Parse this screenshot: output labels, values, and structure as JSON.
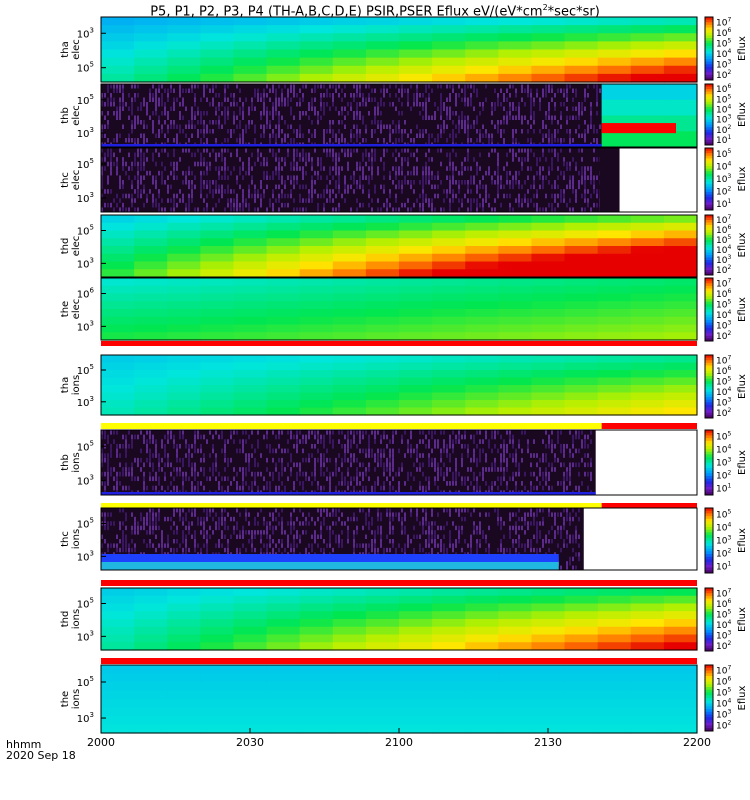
{
  "title": "P5, P1, P2, P3, P4 (TH-A,B,C,D,E) PSIR,PSER Eflux eV/(eV*cm2*sec*sr)",
  "chart_data": {
    "type": "heatmap",
    "x_axis": {
      "range": [
        "2000",
        "2200"
      ],
      "ticks": [
        "2000",
        "2030",
        "2100",
        "2130",
        "2200"
      ],
      "label_line1": "hhmm",
      "label_line2": "2020 Sep 18"
    },
    "colorbar_label": "Eflux",
    "panels": [
      {
        "id": "tha_elec",
        "ylabel": [
          "tha",
          "elec"
        ],
        "yticks": [
          "10^3",
          "10^5"
        ],
        "cbar": [
          "10^2",
          "10^3",
          "10^4",
          "10^5",
          "10^6",
          "10^7"
        ],
        "pattern": "smooth_green_to_red",
        "bottom_band": "none",
        "fill_end": 1.0
      },
      {
        "id": "thb_elec",
        "ylabel": [
          "thb",
          "elec"
        ],
        "yticks": [
          "10^5",
          "10^3"
        ],
        "cbar": [
          "10^1",
          "10^2",
          "10^3",
          "10^4",
          "10^5",
          "10^6"
        ],
        "pattern": "noise_then_data",
        "bottom_band": "none",
        "fill_end": 0.85
      },
      {
        "id": "thc_elec",
        "ylabel": [
          "thc",
          "elec"
        ],
        "yticks": [
          "10^5",
          "10^3"
        ],
        "cbar": [
          "10^1",
          "10^2",
          "10^3",
          "10^4",
          "10^5"
        ],
        "pattern": "noise",
        "bottom_band": "none",
        "fill_end": 0.87
      },
      {
        "id": "thd_elec",
        "ylabel": [
          "thd",
          "elec"
        ],
        "yticks": [
          "10^5",
          "10^3"
        ],
        "cbar": [
          "10^2",
          "10^3",
          "10^4",
          "10^5",
          "10^6",
          "10^7"
        ],
        "pattern": "smooth_to_red",
        "bottom_band": "none",
        "fill_end": 1.0
      },
      {
        "id": "the_elec",
        "ylabel": [
          "the",
          "elec"
        ],
        "yticks": [
          "10^6",
          "10^3"
        ],
        "cbar": [
          "10^2",
          "10^3",
          "10^4",
          "10^5",
          "10^6",
          "10^7"
        ],
        "pattern": "smooth_green",
        "bottom_band": "red",
        "fill_end": 1.0
      },
      {
        "id": "tha_ions",
        "ylabel": [
          "tha",
          "ions"
        ],
        "yticks": [
          "10^5",
          "10^3"
        ],
        "cbar": [
          "10^2",
          "10^3",
          "10^4",
          "10^5",
          "10^6",
          "10^7"
        ],
        "pattern": "smooth_cyan_green",
        "bottom_band": "yellow_red",
        "fill_end": 1.0
      },
      {
        "id": "thb_ions",
        "ylabel": [
          "thb",
          "ions"
        ],
        "yticks": [
          "10^5",
          "10^3"
        ],
        "cbar": [
          "10^1",
          "10^2",
          "10^3",
          "10^4",
          "10^5"
        ],
        "pattern": "noise",
        "bottom_band": "yellow_red",
        "fill_end": 0.83
      },
      {
        "id": "thc_ions",
        "ylabel": [
          "thc",
          "ions"
        ],
        "yticks": [
          "10^5",
          "10^3"
        ],
        "cbar": [
          "10^1",
          "10^2",
          "10^3",
          "10^4",
          "10^5"
        ],
        "pattern": "noise_low_band",
        "bottom_band": "red",
        "fill_end": 0.81
      },
      {
        "id": "thd_ions",
        "ylabel": [
          "thd",
          "ions"
        ],
        "yticks": [
          "10^5",
          "10^3"
        ],
        "cbar": [
          "10^2",
          "10^3",
          "10^4",
          "10^5",
          "10^6",
          "10^7"
        ],
        "pattern": "smooth_to_orange",
        "bottom_band": "red",
        "fill_end": 1.0
      },
      {
        "id": "the_ions",
        "ylabel": [
          "the",
          "ions"
        ],
        "yticks": [
          "10^5",
          "10^3"
        ],
        "cbar": [
          "10^2",
          "10^3",
          "10^4",
          "10^5",
          "10^6",
          "10^7"
        ],
        "pattern": "smooth_cyan",
        "bottom_band": "none",
        "fill_end": 1.0
      }
    ]
  }
}
